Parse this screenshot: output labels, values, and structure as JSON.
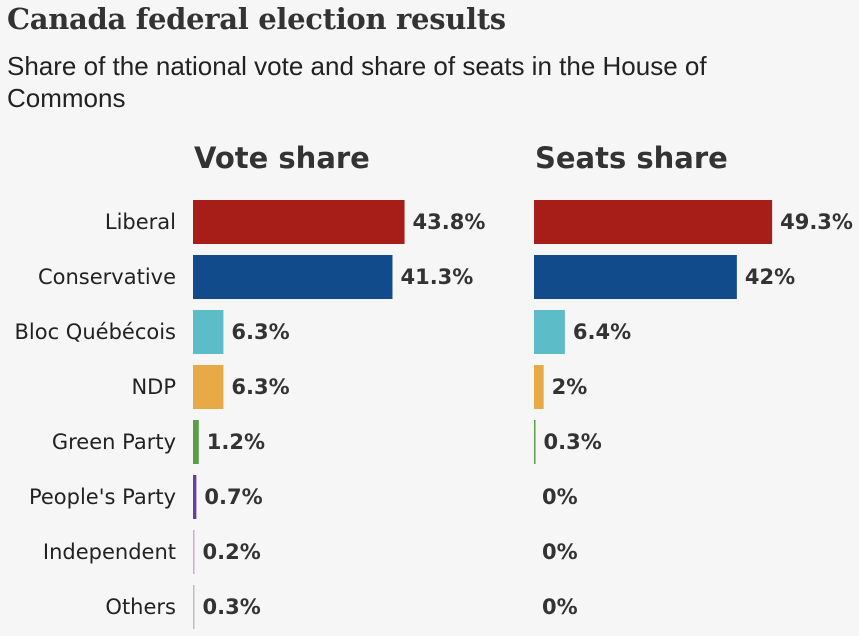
{
  "title": "Canada federal election results",
  "subtitle": "Share of the national vote and share of seats in the House of Commons",
  "chart_data": {
    "type": "bar",
    "orientation": "horizontal",
    "categories": [
      "Liberal",
      "Conservative",
      "Bloc Québécois",
      "NDP",
      "Green Party",
      "People's Party",
      "Independent",
      "Others"
    ],
    "colors": [
      "#a61e17",
      "#114b8b",
      "#5cbdc9",
      "#e8aa47",
      "#5a9e48",
      "#6b3fa0",
      "#d7a6cf",
      "#bdbdbd"
    ],
    "series": [
      {
        "name": "Vote share",
        "values": [
          43.8,
          41.3,
          6.3,
          6.3,
          1.2,
          0.7,
          0.2,
          0.3
        ],
        "labels": [
          "43.8%",
          "41.3%",
          "6.3%",
          "6.3%",
          "1.2%",
          "0.7%",
          "0.2%",
          "0.3%"
        ]
      },
      {
        "name": "Seats share",
        "values": [
          49.3,
          42,
          6.4,
          2,
          0.3,
          0,
          0,
          0
        ],
        "labels": [
          "49.3%",
          "42%",
          "6.4%",
          "2%",
          "0.3%",
          "0%",
          "0%",
          "0%"
        ]
      }
    ],
    "unit": "%"
  }
}
